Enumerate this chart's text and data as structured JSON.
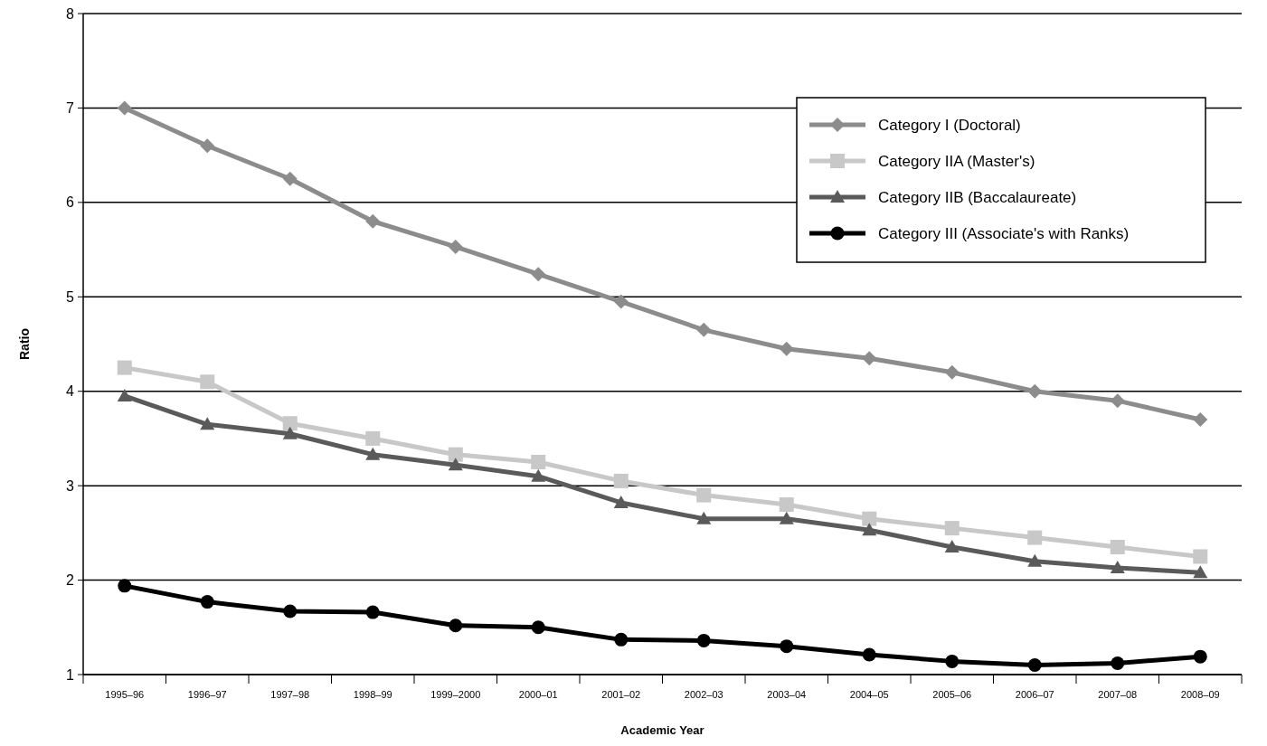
{
  "chart_data": {
    "type": "line",
    "xlabel": "Academic Year",
    "ylabel": "Ratio",
    "categories": [
      "1995–96",
      "1996–97",
      "1997–98",
      "1998–99",
      "1999–2000",
      "2000–01",
      "2001–02",
      "2002–03",
      "2003–04",
      "2004–05",
      "2005–06",
      "2006–07",
      "2007–08",
      "2008–09"
    ],
    "series": [
      {
        "name": "Category I (Doctoral)",
        "color": "#8c8c8c",
        "marker": "diamond",
        "values": [
          7.0,
          6.6,
          6.25,
          5.8,
          5.53,
          5.24,
          4.95,
          4.65,
          4.45,
          4.35,
          4.2,
          4.0,
          3.9,
          3.7
        ]
      },
      {
        "name": "Category IIA (Master's)",
        "color": "#c8c8c8",
        "marker": "square",
        "values": [
          4.25,
          4.1,
          3.66,
          3.5,
          3.33,
          3.25,
          3.05,
          2.9,
          2.8,
          2.65,
          2.55,
          2.45,
          2.35,
          2.25
        ]
      },
      {
        "name": "Category IIB (Baccalaureate)",
        "color": "#5a5a5a",
        "marker": "triangle",
        "values": [
          3.95,
          3.65,
          3.55,
          3.33,
          3.22,
          3.1,
          2.82,
          2.65,
          2.65,
          2.53,
          2.35,
          2.2,
          2.13,
          2.08
        ]
      },
      {
        "name": "Category III (Associate's with Ranks)",
        "color": "#000000",
        "marker": "circle",
        "values": [
          1.94,
          1.77,
          1.67,
          1.66,
          1.52,
          1.5,
          1.37,
          1.36,
          1.3,
          1.21,
          1.14,
          1.1,
          1.12,
          1.19
        ]
      }
    ],
    "ylim": [
      1,
      8
    ],
    "yticks": [
      1,
      2,
      3,
      4,
      5,
      6,
      7,
      8
    ],
    "grid": "y",
    "legend": "top right"
  }
}
